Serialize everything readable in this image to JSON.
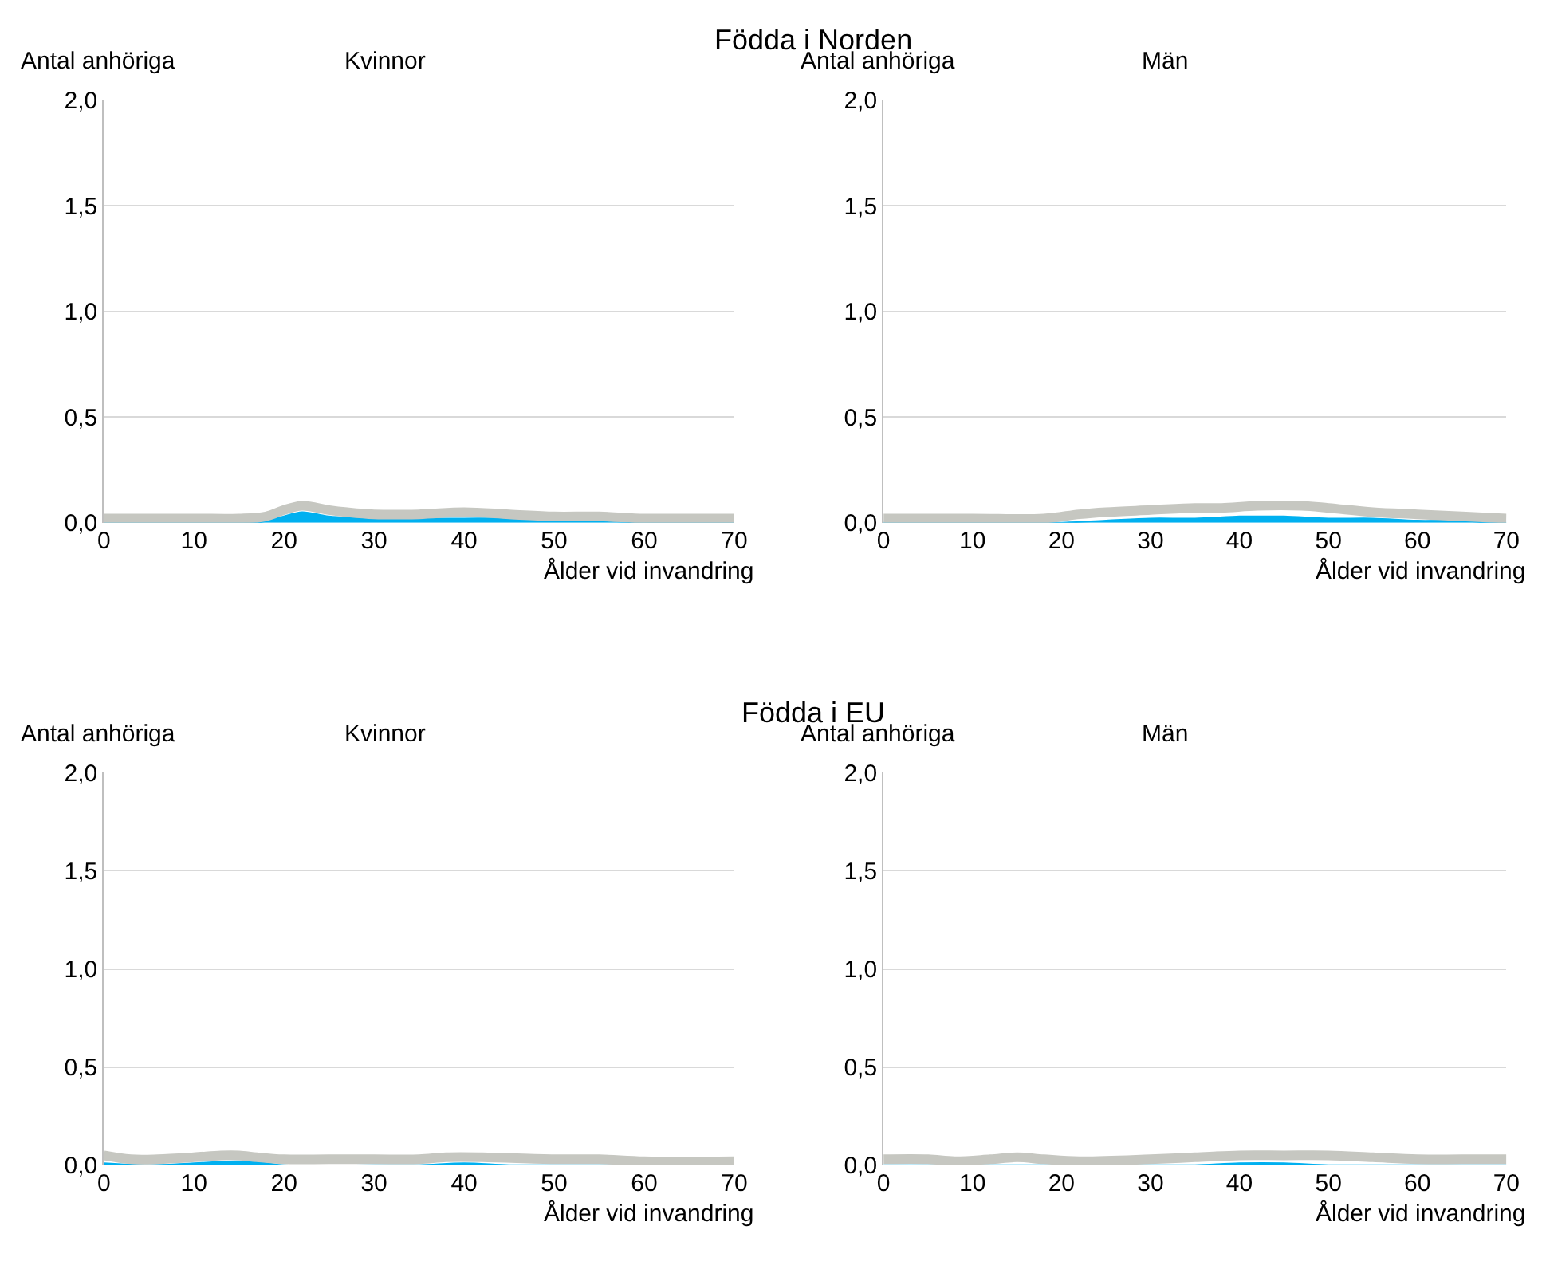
{
  "chart_data": [
    {
      "type": "area",
      "title": "Födda i Norden",
      "subtitle": "Kvinnor",
      "ylabel": "Antal anhöriga",
      "xlabel": "Ålder vid invandring",
      "xlim": [
        0,
        70
      ],
      "xticks": [
        0,
        10,
        20,
        30,
        40,
        50,
        60,
        70
      ],
      "ylim": [
        0,
        2
      ],
      "yticks": [
        {
          "value": 0,
          "label": "0,0"
        },
        {
          "value": 0.5,
          "label": "0,5"
        },
        {
          "value": 1,
          "label": "1,0"
        },
        {
          "value": 1.5,
          "label": "1,5"
        },
        {
          "value": 2,
          "label": "2,0"
        }
      ],
      "grid": "y",
      "series": [
        {
          "color": "#00b0f0",
          "x": [
            0,
            15,
            17,
            20,
            22,
            25,
            30,
            35,
            40,
            45,
            50,
            55,
            60,
            70
          ],
          "values": [
            0,
            0,
            0,
            0.03,
            0.05,
            0.03,
            0.02,
            0.02,
            0.02,
            0.02,
            0.01,
            0.01,
            0,
            0
          ]
        },
        {
          "type": "line",
          "color": "#c6c7c1",
          "x": [
            0,
            10,
            15,
            18,
            20,
            22,
            25,
            27,
            30,
            35,
            40,
            45,
            50,
            55,
            60,
            65,
            70
          ],
          "values": [
            0.02,
            0.02,
            0.02,
            0.03,
            0.06,
            0.08,
            0.06,
            0.05,
            0.04,
            0.04,
            0.05,
            0.04,
            0.03,
            0.03,
            0.02,
            0.02,
            0.02
          ]
        }
      ]
    },
    {
      "type": "area",
      "subtitle": "Män",
      "ylabel": "Antal anhöriga",
      "xlabel": "Ålder vid invandring",
      "xlim": [
        0,
        70
      ],
      "xticks": [
        0,
        10,
        20,
        30,
        40,
        50,
        60,
        70
      ],
      "ylim": [
        0,
        2
      ],
      "yticks": [
        {
          "value": 0,
          "label": "0,0"
        },
        {
          "value": 0.5,
          "label": "0,5"
        },
        {
          "value": 1,
          "label": "1,0"
        },
        {
          "value": 1.5,
          "label": "1,5"
        },
        {
          "value": 2,
          "label": "2,0"
        }
      ],
      "grid": "y",
      "series": [
        {
          "color": "#00b0f0",
          "x": [
            0,
            18,
            20,
            25,
            30,
            35,
            40,
            42,
            45,
            50,
            55,
            60,
            65,
            68,
            70
          ],
          "values": [
            0,
            0,
            0,
            0.01,
            0.02,
            0.02,
            0.03,
            0.03,
            0.03,
            0.02,
            0.02,
            0.01,
            0.01,
            0,
            0
          ]
        },
        {
          "type": "line",
          "color": "#c6c7c1",
          "x": [
            0,
            10,
            18,
            22,
            25,
            30,
            35,
            38,
            42,
            47,
            50,
            55,
            60,
            65,
            70
          ],
          "values": [
            0.02,
            0.02,
            0.02,
            0.04,
            0.05,
            0.06,
            0.07,
            0.07,
            0.08,
            0.08,
            0.07,
            0.05,
            0.04,
            0.03,
            0.02
          ]
        }
      ]
    },
    {
      "type": "area",
      "title": "Födda i EU",
      "subtitle": "Kvinnor",
      "ylabel": "Antal anhöriga",
      "xlabel": "Ålder vid invandring",
      "xlim": [
        0,
        70
      ],
      "xticks": [
        0,
        10,
        20,
        30,
        40,
        50,
        60,
        70
      ],
      "ylim": [
        0,
        2
      ],
      "yticks": [
        {
          "value": 0,
          "label": "0,0"
        },
        {
          "value": 0.5,
          "label": "0,5"
        },
        {
          "value": 1,
          "label": "1,0"
        },
        {
          "value": 1.5,
          "label": "1,5"
        },
        {
          "value": 2,
          "label": "2,0"
        }
      ],
      "grid": "y",
      "series": [
        {
          "color": "#00b0f0",
          "x": [
            0,
            5,
            10,
            15,
            18,
            20,
            30,
            35,
            40,
            45,
            50,
            70
          ],
          "values": [
            0.01,
            0,
            0.01,
            0.02,
            0.01,
            0,
            0,
            0,
            0.01,
            0,
            0,
            0
          ]
        },
        {
          "type": "line",
          "color": "#c6c7c1",
          "x": [
            0,
            3,
            6,
            10,
            13,
            15,
            17,
            20,
            25,
            30,
            35,
            38,
            42,
            50,
            55,
            60,
            70
          ],
          "values": [
            0.05,
            0.03,
            0.03,
            0.04,
            0.05,
            0.05,
            0.04,
            0.03,
            0.03,
            0.03,
            0.03,
            0.04,
            0.04,
            0.03,
            0.03,
            0.02,
            0.02
          ]
        }
      ]
    },
    {
      "type": "area",
      "subtitle": "Män",
      "ylabel": "Antal anhöriga",
      "xlabel": "Ålder vid invandring",
      "xlim": [
        0,
        70
      ],
      "xticks": [
        0,
        10,
        20,
        30,
        40,
        50,
        60,
        70
      ],
      "ylim": [
        0,
        2
      ],
      "yticks": [
        {
          "value": 0,
          "label": "0,0"
        },
        {
          "value": 0.5,
          "label": "0,5"
        },
        {
          "value": 1,
          "label": "1,0"
        },
        {
          "value": 1.5,
          "label": "1,5"
        },
        {
          "value": 2,
          "label": "2,0"
        }
      ],
      "grid": "y",
      "series": [
        {
          "color": "#00b0f0",
          "x": [
            0,
            30,
            35,
            40,
            45,
            50,
            55,
            70
          ],
          "values": [
            0,
            0,
            0,
            0.01,
            0.01,
            0,
            0,
            0
          ]
        },
        {
          "type": "line",
          "color": "#c6c7c1",
          "x": [
            0,
            5,
            8,
            12,
            15,
            18,
            22,
            30,
            35,
            40,
            45,
            50,
            55,
            60,
            65,
            70
          ],
          "values": [
            0.03,
            0.03,
            0.02,
            0.03,
            0.04,
            0.03,
            0.02,
            0.03,
            0.04,
            0.05,
            0.05,
            0.05,
            0.04,
            0.03,
            0.03,
            0.03
          ]
        }
      ]
    }
  ]
}
